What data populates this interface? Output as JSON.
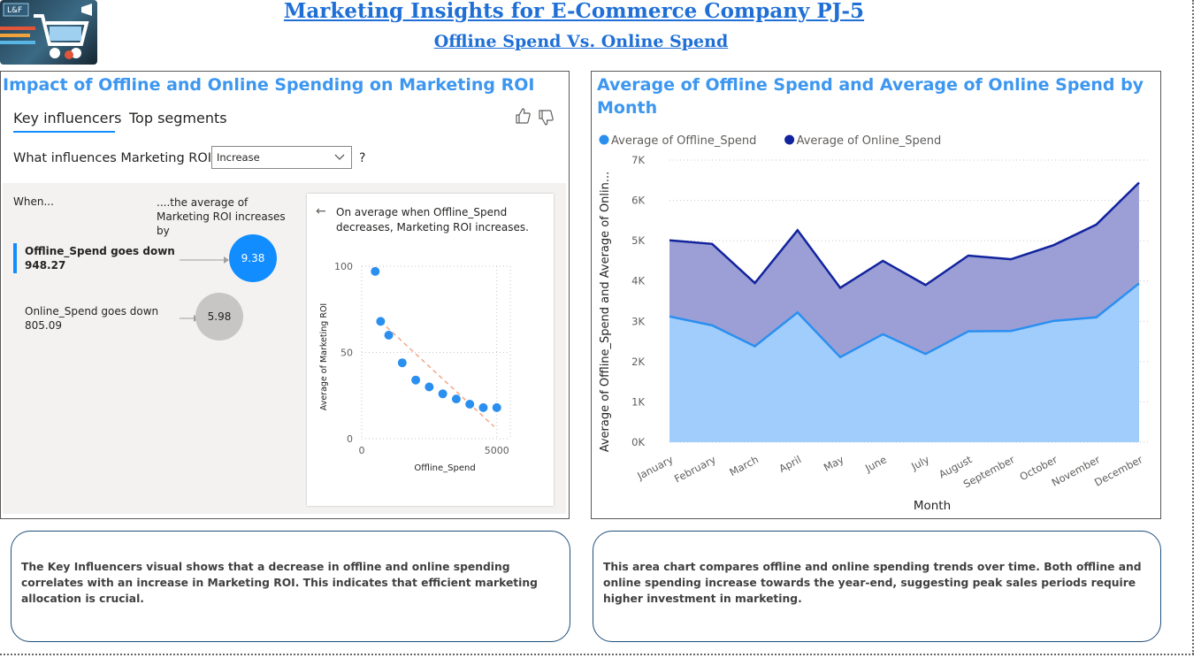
{
  "header": {
    "logo_text": "L&F",
    "title": "Marketing Insights for E-Commerce Company PJ-5",
    "subtitle": "Offline Spend Vs. Online Spend "
  },
  "left_panel": {
    "title": "Impact of Offline and Online Spending on Marketing ROI",
    "tabs": [
      "Key influencers",
      "Top segments"
    ],
    "question_prefix": "What influences Marketing ROI to",
    "dropdown_value": "Increase",
    "question_suffix": "?",
    "col_when": "When...",
    "col_avg": "....the average of Marketing ROI increases by",
    "influencers": [
      {
        "label": "Offline_Spend goes down",
        "value_text": "948.27",
        "impact": "9.38",
        "selected": true
      },
      {
        "label": "Online_Spend goes down",
        "value_text": "805.09",
        "impact": "5.98",
        "selected": false
      }
    ],
    "detail_text": "On average when Offline_Spend decreases, Marketing ROI increases.",
    "back_arrow": "←"
  },
  "chart_data": [
    {
      "type": "scatter",
      "xlabel": "Offline_Spend",
      "ylabel": "Average of Marketing ROI",
      "xlim": [
        0,
        5500
      ],
      "ylim": [
        0,
        100
      ],
      "x_ticks": [
        0,
        5000
      ],
      "y_ticks": [
        0,
        50,
        100
      ],
      "points": [
        {
          "x": 500,
          "y": 97
        },
        {
          "x": 700,
          "y": 68
        },
        {
          "x": 1000,
          "y": 60
        },
        {
          "x": 1500,
          "y": 44
        },
        {
          "x": 2000,
          "y": 34
        },
        {
          "x": 2500,
          "y": 30
        },
        {
          "x": 3000,
          "y": 26
        },
        {
          "x": 3500,
          "y": 23
        },
        {
          "x": 4000,
          "y": 20
        },
        {
          "x": 4500,
          "y": 18
        },
        {
          "x": 5000,
          "y": 18
        }
      ],
      "trendline": {
        "from": [
          700,
          68
        ],
        "to": [
          4900,
          7
        ],
        "color": "#f4a582"
      },
      "point_color": "#2b8ff0"
    },
    {
      "type": "area",
      "title": "Average of Offline Spend and Average of Online Spend by Month",
      "xlabel": "Month",
      "ylabel": "Average of Offline_Spend and Average of Onlin...",
      "ylim": [
        0,
        7000
      ],
      "y_ticks": [
        0,
        1000,
        2000,
        3000,
        4000,
        5000,
        6000,
        7000
      ],
      "y_tick_labels": [
        "0K",
        "1K",
        "2K",
        "3K",
        "4K",
        "5K",
        "6K",
        "7K"
      ],
      "categories": [
        "January",
        "February",
        "March",
        "April",
        "May",
        "June",
        "July",
        "August",
        "September",
        "October",
        "November",
        "December"
      ],
      "legend_position": "top-left",
      "grid": true,
      "series": [
        {
          "name": "Average of Offline_Spend",
          "color": "#2b8ff0",
          "fill": "#a0cdfb",
          "values": [
            3120,
            2900,
            2380,
            3220,
            2110,
            2680,
            2190,
            2750,
            2760,
            3010,
            3100,
            3940
          ]
        },
        {
          "name": "Average of Online_Spend",
          "color": "#12239e",
          "fill": "#9b9fd6",
          "values": [
            5010,
            4920,
            3950,
            5260,
            3830,
            4500,
            3900,
            4630,
            4540,
            4890,
            5400,
            6440
          ]
        }
      ]
    }
  ],
  "notes": {
    "left": "The Key Influencers visual shows that a decrease in offline and online spending correlates with an increase in Marketing ROI. This indicates that efficient marketing allocation is crucial.",
    "right": "This area chart compares offline and online spending trends over time. Both offline and online spending increase towards the year-end, suggesting peak sales periods require higher investment in marketing."
  }
}
